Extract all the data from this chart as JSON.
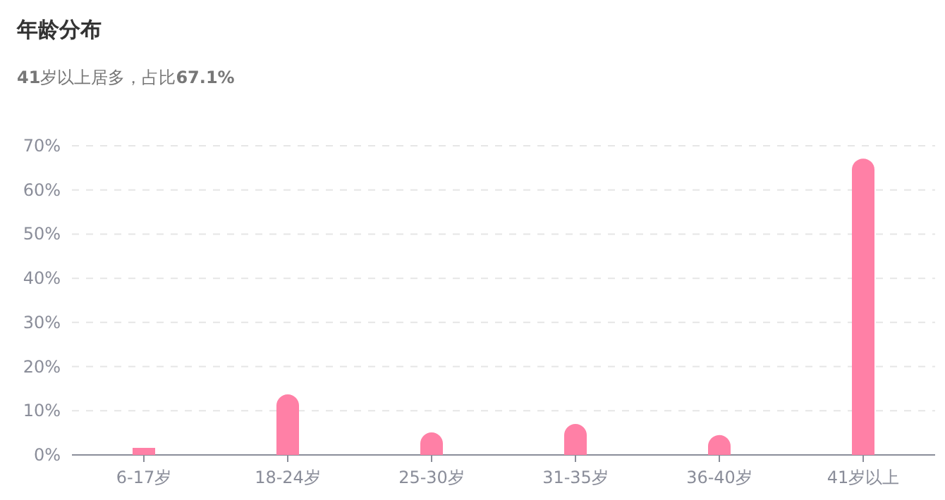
{
  "chart_data": {
    "type": "bar",
    "title": "年龄分布",
    "subtitle": "**41**岁以上居多，占比**67.1%**",
    "categories": [
      "6-17岁",
      "18-24岁",
      "25-30岁",
      "31-35岁",
      "36-40岁",
      "41岁以上"
    ],
    "values": [
      1.6,
      13.7,
      5.1,
      7.0,
      4.5,
      67.1
    ],
    "color": "#ff80a6",
    "ylim": [
      0,
      70
    ],
    "yticks": [
      {
        "value": 0,
        "label": "0%"
      },
      {
        "value": 10,
        "label": "10%"
      },
      {
        "value": 20,
        "label": "20%"
      },
      {
        "value": 30,
        "label": "30%"
      },
      {
        "value": 40,
        "label": "40%"
      },
      {
        "value": 50,
        "label": "50%"
      },
      {
        "value": 60,
        "label": "60%"
      },
      {
        "value": 70,
        "label": "70%"
      }
    ],
    "grid": "y"
  }
}
